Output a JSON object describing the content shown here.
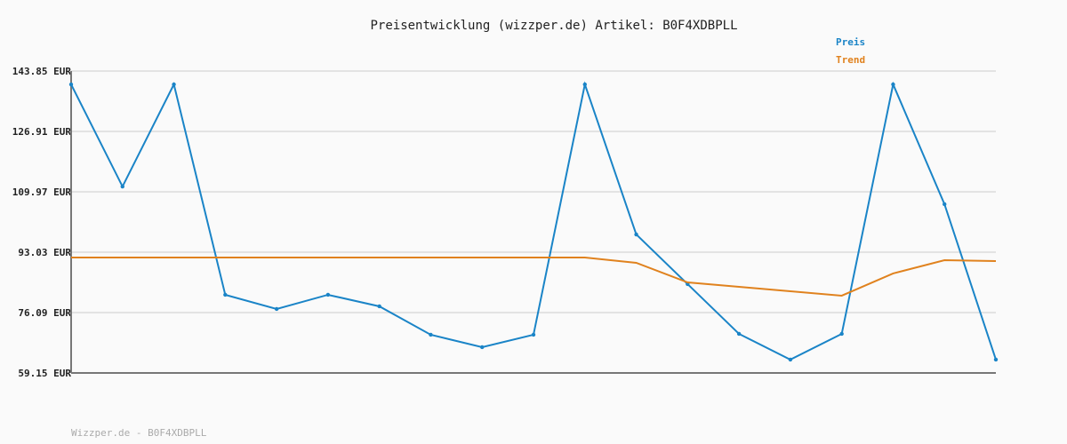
{
  "chart_data": {
    "type": "line",
    "title": "Preisentwicklung (wizzper.de) Artikel: B0F4XDBPLL",
    "xlabel": "",
    "ylabel": "",
    "ylim": [
      59.15,
      143.85
    ],
    "yticks": [
      "143.85 EUR",
      "126.91 EUR",
      "109.97 EUR",
      "93.03 EUR",
      "76.09 EUR",
      "59.15 EUR"
    ],
    "ytick_values": [
      143.85,
      126.91,
      109.97,
      93.03,
      76.09,
      59.15
    ],
    "grid": true,
    "legend_placement": "top-right",
    "series": [
      {
        "name": "Preis",
        "color": "#1a84c7",
        "values": [
          140.11,
          111.46,
          140.11,
          81.08,
          77.09,
          81.08,
          77.84,
          69.87,
          66.38,
          69.87,
          140.11,
          98.01,
          84.07,
          70.12,
          62.89,
          70.12,
          140.11,
          106.49,
          62.89
        ]
      },
      {
        "name": "Trend",
        "color": "#e0821e",
        "values": [
          91.54,
          91.54,
          91.54,
          91.54,
          91.54,
          91.54,
          91.54,
          91.54,
          91.54,
          91.54,
          91.54,
          90.05,
          84.56,
          83.32,
          82.07,
          80.83,
          87.06,
          90.79,
          90.54
        ]
      }
    ]
  },
  "footer": "Wizzper.de - B0F4XDBPLL"
}
